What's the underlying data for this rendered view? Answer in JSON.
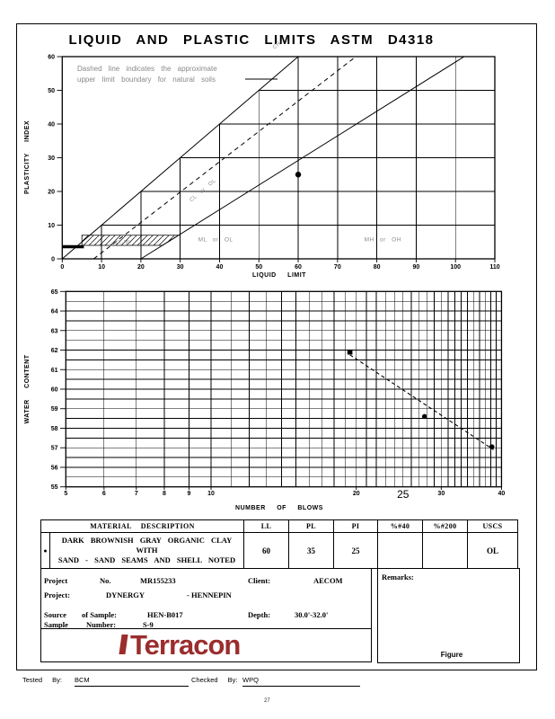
{
  "page": {
    "title": "LIQUID AND PLASTIC LIMITS ASTM D4318",
    "figure_label": "Figure",
    "page_number": "27"
  },
  "chart_data": [
    {
      "type": "scatter",
      "name": "plasticity_chart",
      "title": "LIQUID AND PLASTIC LIMITS ASTM D4318",
      "xlabel": "LIQUID LIMIT",
      "ylabel": "PLASTICITY INDEX",
      "xlim": [
        0,
        110
      ],
      "ylim": [
        0,
        60
      ],
      "x_ticks": [
        0,
        10,
        20,
        30,
        40,
        50,
        60,
        70,
        80,
        90,
        100,
        110
      ],
      "y_ticks": [
        0,
        10,
        20,
        30,
        40,
        50,
        60
      ],
      "grid": true,
      "note_line1": "Dashed line indicates the approximate",
      "note_line2": "upper limit boundary for natural soils",
      "lines": [
        {
          "name": "equality-line",
          "style": "solid",
          "x1": 0,
          "y1": 0,
          "x2": 60,
          "y2": 60
        },
        {
          "name": "u-line",
          "style": "dashed",
          "x1": 8,
          "y1": 0,
          "x2": 74.67,
          "y2": 60
        },
        {
          "name": "a-line",
          "style": "solid",
          "x1": 20,
          "y1": 0,
          "x2": 102.2,
          "y2": 60
        }
      ],
      "cl_ml_zone": {
        "ll_min": 5,
        "ll_max_bottom": 25.5,
        "ll_max_top": 29.6,
        "pi_min": 4,
        "pi_max": 7
      },
      "low_pi_bar": {
        "ll_min": 0,
        "ll_max": 5.5,
        "pi": 3.6
      },
      "region_labels": [
        {
          "text": "CL-ML",
          "ll": 15.5,
          "pi": 4.6,
          "rotate": 0,
          "size": 5.5
        },
        {
          "text": "ML or OL",
          "ll": 39,
          "pi": 5.2,
          "rotate": 0,
          "size": 6.5
        },
        {
          "text": "MH or OH",
          "ll": 81.5,
          "pi": 5.2,
          "rotate": 0,
          "size": 6.5
        },
        {
          "text": "CL or OL",
          "ll": 36,
          "pi": 20,
          "rotate": -40,
          "size": 6
        },
        {
          "text": "CH",
          "ll": 54.8,
          "pi": 63,
          "rotate": -40,
          "size": 6
        }
      ],
      "points": [
        {
          "x": 60,
          "y": 25
        }
      ]
    },
    {
      "type": "scatter",
      "name": "flow_curve",
      "xlabel": "NUMBER OF BLOWS",
      "ylabel": "WATER CONTENT",
      "x_scale": "log",
      "xlim": [
        5,
        40
      ],
      "ylim": [
        55,
        65
      ],
      "x_tick_labels": [
        5,
        6,
        7,
        8,
        9,
        10,
        20,
        30,
        40
      ],
      "x_tick_special": 25,
      "y_ticks": [
        55,
        56,
        57,
        58,
        59,
        60,
        61,
        62,
        63,
        64,
        65
      ],
      "y_minor_step": 0.5,
      "points": [
        {
          "x": 19.4,
          "y": 61.9,
          "marker": "square"
        },
        {
          "x": 27.7,
          "y": 58.6,
          "marker": "circle"
        },
        {
          "x": 38.2,
          "y": 57.05,
          "marker": "circle"
        }
      ],
      "flow_line": {
        "x1": 19.4,
        "y1": 61.85,
        "x2": 38.5,
        "y2": 56.9,
        "style": "dashed"
      }
    }
  ],
  "table": {
    "headers": [
      "MATERIAL DESCRIPTION",
      "LL",
      "PL",
      "PI",
      "%#40",
      "%#200",
      "USCS"
    ],
    "row": {
      "marker": "●",
      "description_line1": "DARK BROWNISH GRAY ORGANIC CLAY WITH",
      "description_line2": "SAND - SAND SEAMS AND SHELL NOTED",
      "ll": "60",
      "pl": "35",
      "pi": "25",
      "p40": "",
      "p200": "",
      "uscs": "OL"
    }
  },
  "project": {
    "l1a": "Project",
    "l1b": "No.",
    "l1c": "MR155233",
    "l1d": "Client:",
    "l1e": "AECOM",
    "l2a": "Project:",
    "l2b": "DYNERGY",
    "l2c": "- HENNEPIN",
    "l3a": "Source",
    "l3b": "of Sample:",
    "l3c": "HEN-B017",
    "l3d": "Depth:",
    "l3e": "30.0'-32.0'",
    "l4a": "Sample",
    "l4b": "Number:",
    "l4c": "S-9",
    "remarks_label": "Remarks:"
  },
  "logo": {
    "text": "Terracon",
    "color": "#9B2D2D"
  },
  "footer": {
    "tested_label": "Tested By:",
    "tested": "BCM",
    "checked_label": "Checked By:",
    "checked": "WPQ"
  }
}
